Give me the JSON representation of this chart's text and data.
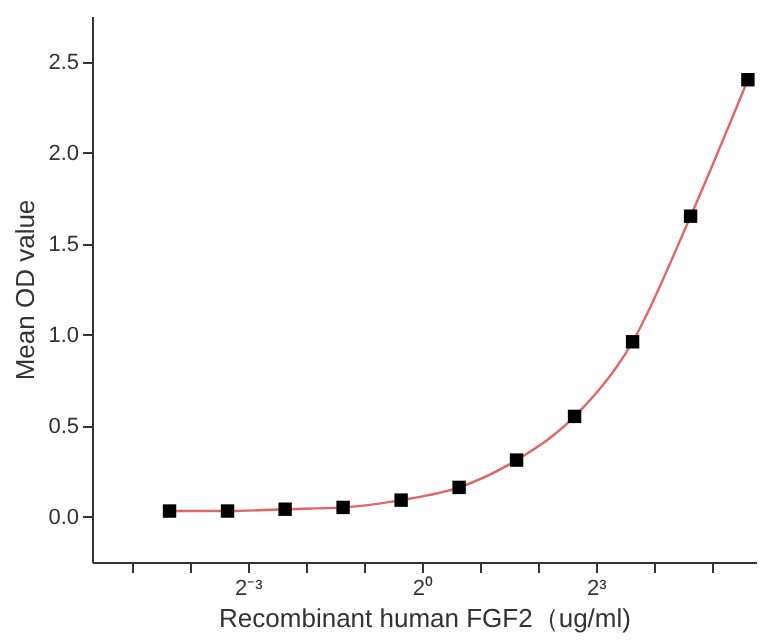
{
  "chart_data": {
    "type": "scatter",
    "xlabel": "Recombinant human  FGF2（ug/ml)",
    "ylabel": "Mean OD value",
    "log": "x",
    "xlim": [
      0.0194,
      54.2
    ],
    "ylim": [
      -0.25,
      2.75
    ],
    "xticks": [
      {
        "value": 0.03125,
        "label": null
      },
      {
        "value": 0.0625,
        "label": null
      },
      {
        "value": 0.125,
        "label": "2⁻³"
      },
      {
        "value": 0.25,
        "label": null
      },
      {
        "value": 0.5,
        "label": null
      },
      {
        "value": 1,
        "label": "2⁰"
      },
      {
        "value": 2,
        "label": null
      },
      {
        "value": 4,
        "label": null
      },
      {
        "value": 8,
        "label": "2³"
      },
      {
        "value": 16,
        "label": null
      },
      {
        "value": 32,
        "label": null
      }
    ],
    "yticks": [
      {
        "value": 0,
        "label": "0.0"
      },
      0.5,
      {
        "value": 1,
        "label": "1.0"
      },
      1.5,
      {
        "value": 2,
        "label": "2.0"
      },
      2.5
    ],
    "grid": false,
    "legend": false,
    "marker": "square",
    "series": [
      {
        "type": "line",
        "color": "#e06666",
        "line_style": "solid",
        "marker": "none",
        "x": [
          0.049,
          0.098,
          0.195,
          0.39,
          0.78,
          1.56,
          3.1,
          6.2,
          12.4,
          24.8,
          49.2
        ],
        "values": [
          0.03,
          0.03,
          0.04,
          0.05,
          0.09,
          0.16,
          0.31,
          0.55,
          0.96,
          1.65,
          2.4
        ]
      },
      {
        "color": "#000000",
        "x": [
          0.049,
          0.098,
          0.195,
          0.39,
          0.78,
          1.56,
          3.1,
          6.2,
          12.4,
          24.8,
          49.2
        ],
        "values": [
          0.03,
          0.03,
          0.04,
          0.05,
          0.09,
          0.16,
          0.31,
          0.55,
          0.96,
          1.65,
          2.4
        ]
      }
    ]
  }
}
